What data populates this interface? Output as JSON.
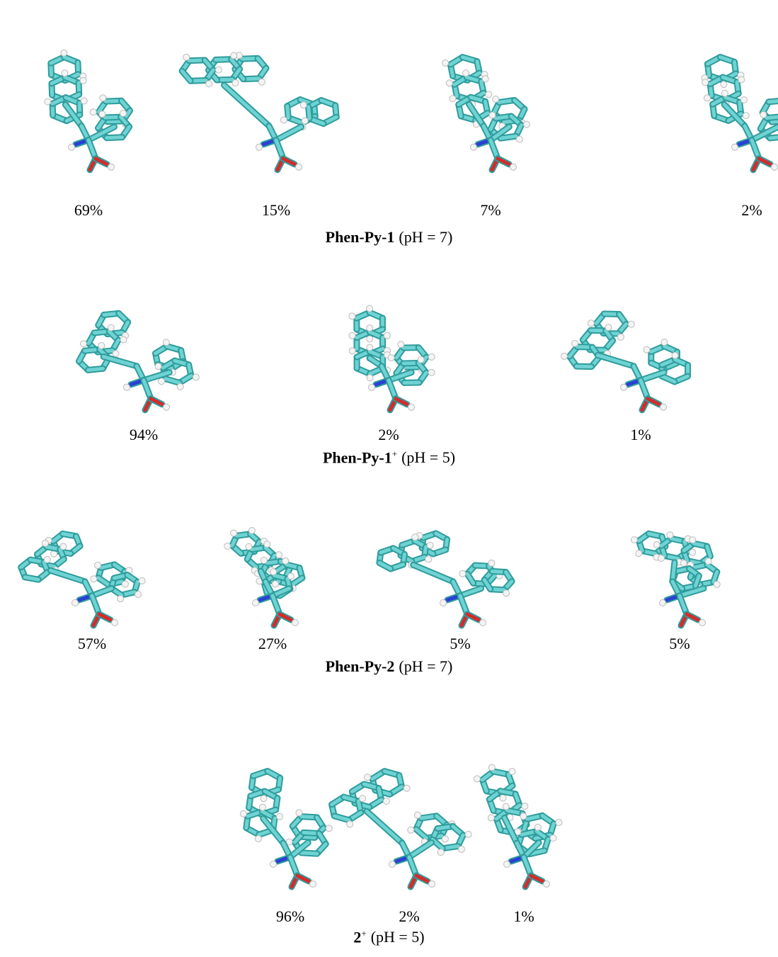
{
  "panels": [
    {
      "percentages": [
        "69%",
        "15%",
        "7%",
        "2%"
      ],
      "label": {
        "name": "Phen-Py-1",
        "condition": "(pH = 7)"
      }
    },
    {
      "percentages": [
        "94%",
        "2%",
        "1%"
      ],
      "label": {
        "name": "Phen-Py-1",
        "charge": "+",
        "condition": "(pH = 5)"
      }
    },
    {
      "percentages": [
        "57%",
        "27%",
        "5%",
        "5%"
      ],
      "label": {
        "name": "Phen-Py-2",
        "condition": "(pH = 7)"
      }
    },
    {
      "percentages": [
        "96%",
        "2%",
        "1%"
      ],
      "label": {
        "name": "2",
        "charge": "+",
        "condition": "(pH = 5)"
      }
    }
  ]
}
